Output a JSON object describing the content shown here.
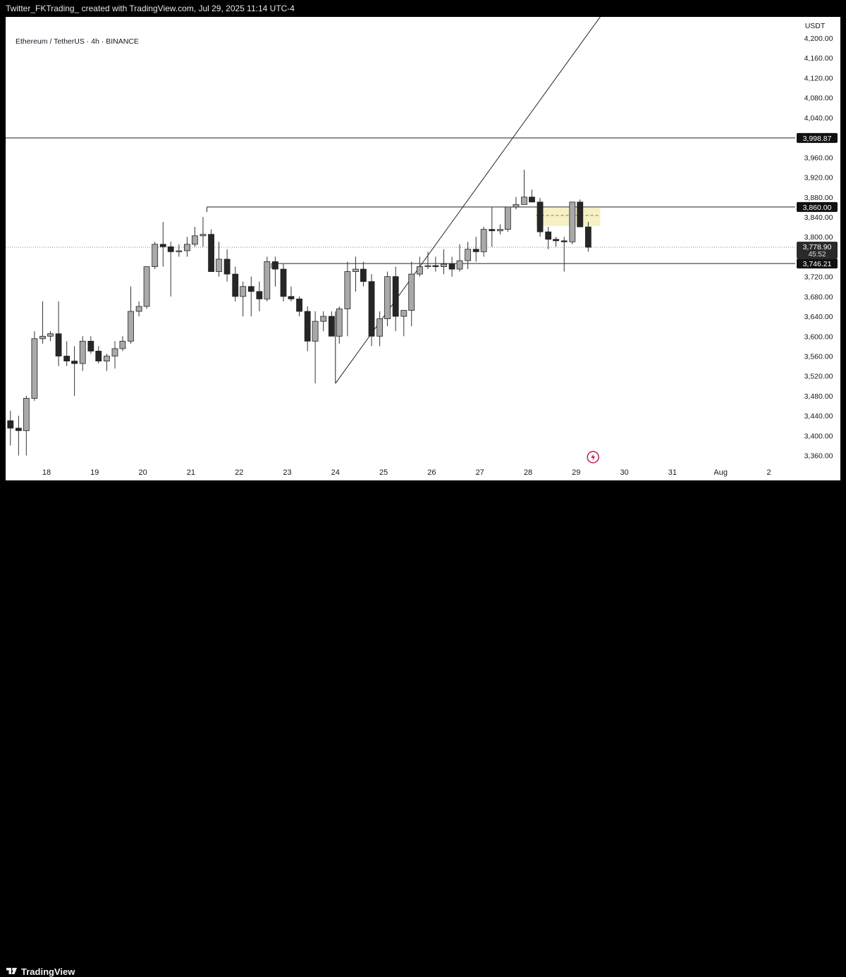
{
  "header": {
    "caption": "Twitter_FKTrading_ created with TradingView.com, Jul 29, 2025 11:14 UTC-4"
  },
  "footer": {
    "brand": "TradingView"
  },
  "chart_data": {
    "type": "candlestick",
    "symbol": "Ethereum / TetherUS · 4h · BINANCE",
    "currency": "USDT",
    "y_ticks": [
      4200,
      4160,
      4120,
      4080,
      4040,
      3960,
      3920,
      3880,
      3840,
      3800,
      3720,
      3680,
      3640,
      3600,
      3560,
      3520,
      3480,
      3440,
      3400,
      3360
    ],
    "y_tick_labels": [
      "4,200.00",
      "4,160.00",
      "4,120.00",
      "4,080.00",
      "4,040.00",
      "3,960.00",
      "3,920.00",
      "3,880.00",
      "3,840.00",
      "3,800.00",
      "3,720.00",
      "3,680.00",
      "3,640.00",
      "3,600.00",
      "3,560.00",
      "3,520.00",
      "3,480.00",
      "3,440.00",
      "3,400.00",
      "3,360.00"
    ],
    "x_labels": [
      {
        "label": "18",
        "day": 18
      },
      {
        "label": "19",
        "day": 19
      },
      {
        "label": "20",
        "day": 20
      },
      {
        "label": "21",
        "day": 21
      },
      {
        "label": "22",
        "day": 22
      },
      {
        "label": "23",
        "day": 23
      },
      {
        "label": "24",
        "day": 24
      },
      {
        "label": "25",
        "day": 25
      },
      {
        "label": "26",
        "day": 26
      },
      {
        "label": "27",
        "day": 27
      },
      {
        "label": "28",
        "day": 28
      },
      {
        "label": "29",
        "day": 29
      },
      {
        "label": "30",
        "day": 30
      },
      {
        "label": "31",
        "day": 31
      },
      {
        "label": "Aug",
        "day": 32
      },
      {
        "label": "2",
        "day": 33
      }
    ],
    "price_markers": [
      {
        "label": "3,998.87",
        "value": 3998.87,
        "style": "dark"
      },
      {
        "label": "3,860.00",
        "value": 3860,
        "style": "dark"
      },
      {
        "label": "3,778.90",
        "sub": "45:52",
        "value": 3778.9,
        "style": "current"
      },
      {
        "label": "3,746.21",
        "value": 3746.21,
        "style": "dark"
      }
    ],
    "horizontal_levels": [
      {
        "value": 3998.87,
        "from_day": 17
      },
      {
        "value": 3860,
        "from_day": 21.33
      },
      {
        "value": 3746.21,
        "from_day": 22.67
      }
    ],
    "current_price": 3778.9,
    "trendlines": [
      {
        "from": {
          "day": 24.0,
          "price": 3505
        },
        "to": {
          "day": 30.0,
          "price": 4310
        }
      },
      {
        "from": {
          "day": 24.0,
          "price": 3505
        },
        "to": {
          "day": 24.0,
          "price": 3650
        }
      }
    ],
    "zone": {
      "from_day": 28.17,
      "to_day": 29.5,
      "low": 3822,
      "high": 3858,
      "mid": 3843
    },
    "candles": [
      {
        "day": 17.08,
        "o": 3440,
        "h": 3480,
        "l": 3380,
        "c": 3430
      },
      {
        "day": 17.25,
        "o": 3430,
        "h": 3450,
        "l": 3380,
        "c": 3415
      },
      {
        "day": 17.42,
        "o": 3415,
        "h": 3440,
        "l": 3360,
        "c": 3410
      },
      {
        "day": 17.58,
        "o": 3410,
        "h": 3480,
        "l": 3360,
        "c": 3475
      },
      {
        "day": 17.75,
        "o": 3475,
        "h": 3610,
        "l": 3470,
        "c": 3595
      },
      {
        "day": 17.92,
        "o": 3595,
        "h": 3670,
        "l": 3585,
        "c": 3600
      },
      {
        "day": 18.08,
        "o": 3600,
        "h": 3610,
        "l": 3590,
        "c": 3605
      },
      {
        "day": 18.25,
        "o": 3605,
        "h": 3670,
        "l": 3540,
        "c": 3560
      },
      {
        "day": 18.42,
        "o": 3560,
        "h": 3590,
        "l": 3540,
        "c": 3550
      },
      {
        "day": 18.58,
        "o": 3550,
        "h": 3580,
        "l": 3480,
        "c": 3545
      },
      {
        "day": 18.75,
        "o": 3545,
        "h": 3600,
        "l": 3530,
        "c": 3590
      },
      {
        "day": 18.92,
        "o": 3590,
        "h": 3600,
        "l": 3565,
        "c": 3570
      },
      {
        "day": 19.08,
        "o": 3570,
        "h": 3580,
        "l": 3545,
        "c": 3550
      },
      {
        "day": 19.25,
        "o": 3550,
        "h": 3565,
        "l": 3530,
        "c": 3560
      },
      {
        "day": 19.42,
        "o": 3560,
        "h": 3590,
        "l": 3535,
        "c": 3575
      },
      {
        "day": 19.58,
        "o": 3575,
        "h": 3600,
        "l": 3570,
        "c": 3590
      },
      {
        "day": 19.75,
        "o": 3590,
        "h": 3700,
        "l": 3585,
        "c": 3650
      },
      {
        "day": 19.92,
        "o": 3650,
        "h": 3670,
        "l": 3640,
        "c": 3660
      },
      {
        "day": 20.08,
        "o": 3660,
        "h": 3740,
        "l": 3655,
        "c": 3740
      },
      {
        "day": 20.25,
        "o": 3740,
        "h": 3790,
        "l": 3735,
        "c": 3785
      },
      {
        "day": 20.42,
        "o": 3785,
        "h": 3830,
        "l": 3740,
        "c": 3780
      },
      {
        "day": 20.58,
        "o": 3780,
        "h": 3790,
        "l": 3680,
        "c": 3770
      },
      {
        "day": 20.75,
        "o": 3770,
        "h": 3785,
        "l": 3760,
        "c": 3772
      },
      {
        "day": 20.92,
        "o": 3772,
        "h": 3800,
        "l": 3760,
        "c": 3785
      },
      {
        "day": 21.08,
        "o": 3785,
        "h": 3820,
        "l": 3780,
        "c": 3802
      },
      {
        "day": 21.25,
        "o": 3802,
        "h": 3840,
        "l": 3780,
        "c": 3805
      },
      {
        "day": 21.42,
        "o": 3805,
        "h": 3815,
        "l": 3730,
        "c": 3730
      },
      {
        "day": 21.58,
        "o": 3730,
        "h": 3790,
        "l": 3720,
        "c": 3755
      },
      {
        "day": 21.75,
        "o": 3755,
        "h": 3775,
        "l": 3710,
        "c": 3725
      },
      {
        "day": 21.92,
        "o": 3725,
        "h": 3740,
        "l": 3670,
        "c": 3680
      },
      {
        "day": 22.08,
        "o": 3680,
        "h": 3710,
        "l": 3640,
        "c": 3700
      },
      {
        "day": 22.25,
        "o": 3700,
        "h": 3720,
        "l": 3640,
        "c": 3690
      },
      {
        "day": 22.42,
        "o": 3690,
        "h": 3710,
        "l": 3650,
        "c": 3675
      },
      {
        "day": 22.58,
        "o": 3675,
        "h": 3760,
        "l": 3670,
        "c": 3750
      },
      {
        "day": 22.75,
        "o": 3750,
        "h": 3760,
        "l": 3700,
        "c": 3735
      },
      {
        "day": 22.92,
        "o": 3735,
        "h": 3745,
        "l": 3670,
        "c": 3680
      },
      {
        "day": 23.08,
        "o": 3680,
        "h": 3700,
        "l": 3670,
        "c": 3675
      },
      {
        "day": 23.25,
        "o": 3675,
        "h": 3680,
        "l": 3640,
        "c": 3650
      },
      {
        "day": 23.42,
        "o": 3650,
        "h": 3660,
        "l": 3570,
        "c": 3590
      },
      {
        "day": 23.58,
        "o": 3590,
        "h": 3650,
        "l": 3505,
        "c": 3630
      },
      {
        "day": 23.75,
        "o": 3630,
        "h": 3650,
        "l": 3610,
        "c": 3640
      },
      {
        "day": 23.92,
        "o": 3640,
        "h": 3650,
        "l": 3600,
        "c": 3600
      },
      {
        "day": 24.08,
        "o": 3600,
        "h": 3660,
        "l": 3585,
        "c": 3655
      },
      {
        "day": 24.25,
        "o": 3655,
        "h": 3750,
        "l": 3600,
        "c": 3730
      },
      {
        "day": 24.42,
        "o": 3730,
        "h": 3760,
        "l": 3690,
        "c": 3735
      },
      {
        "day": 24.58,
        "o": 3735,
        "h": 3750,
        "l": 3700,
        "c": 3710
      },
      {
        "day": 24.75,
        "o": 3710,
        "h": 3725,
        "l": 3580,
        "c": 3600
      },
      {
        "day": 24.92,
        "o": 3600,
        "h": 3650,
        "l": 3580,
        "c": 3635
      },
      {
        "day": 25.08,
        "o": 3635,
        "h": 3730,
        "l": 3620,
        "c": 3720
      },
      {
        "day": 25.25,
        "o": 3720,
        "h": 3740,
        "l": 3610,
        "c": 3640
      },
      {
        "day": 25.42,
        "o": 3640,
        "h": 3650,
        "l": 3600,
        "c": 3652
      },
      {
        "day": 25.58,
        "o": 3652,
        "h": 3750,
        "l": 3620,
        "c": 3725
      },
      {
        "day": 25.75,
        "o": 3725,
        "h": 3760,
        "l": 3720,
        "c": 3740
      },
      {
        "day": 25.92,
        "o": 3740,
        "h": 3770,
        "l": 3735,
        "c": 3742
      },
      {
        "day": 26.08,
        "o": 3742,
        "h": 3760,
        "l": 3730,
        "c": 3740
      },
      {
        "day": 26.25,
        "o": 3740,
        "h": 3775,
        "l": 3725,
        "c": 3745
      },
      {
        "day": 26.42,
        "o": 3745,
        "h": 3760,
        "l": 3720,
        "c": 3735
      },
      {
        "day": 26.58,
        "o": 3735,
        "h": 3785,
        "l": 3730,
        "c": 3752
      },
      {
        "day": 26.75,
        "o": 3752,
        "h": 3790,
        "l": 3735,
        "c": 3775
      },
      {
        "day": 26.92,
        "o": 3775,
        "h": 3800,
        "l": 3750,
        "c": 3770
      },
      {
        "day": 27.08,
        "o": 3770,
        "h": 3820,
        "l": 3760,
        "c": 3815
      },
      {
        "day": 27.25,
        "o": 3815,
        "h": 3860,
        "l": 3780,
        "c": 3812
      },
      {
        "day": 27.42,
        "o": 3812,
        "h": 3825,
        "l": 3805,
        "c": 3815
      },
      {
        "day": 27.58,
        "o": 3815,
        "h": 3860,
        "l": 3810,
        "c": 3860
      },
      {
        "day": 27.75,
        "o": 3860,
        "h": 3880,
        "l": 3855,
        "c": 3865
      },
      {
        "day": 27.92,
        "o": 3865,
        "h": 3935,
        "l": 3865,
        "c": 3880
      },
      {
        "day": 28.08,
        "o": 3880,
        "h": 3895,
        "l": 3870,
        "c": 3870
      },
      {
        "day": 28.25,
        "o": 3870,
        "h": 3878,
        "l": 3800,
        "c": 3810
      },
      {
        "day": 28.42,
        "o": 3810,
        "h": 3820,
        "l": 3775,
        "c": 3795
      },
      {
        "day": 28.58,
        "o": 3795,
        "h": 3800,
        "l": 3780,
        "c": 3792
      },
      {
        "day": 28.75,
        "o": 3792,
        "h": 3800,
        "l": 3730,
        "c": 3790
      },
      {
        "day": 28.92,
        "o": 3790,
        "h": 3870,
        "l": 3785,
        "c": 3870
      },
      {
        "day": 29.08,
        "o": 3870,
        "h": 3875,
        "l": 3820,
        "c": 3820
      },
      {
        "day": 29.25,
        "o": 3820,
        "h": 3830,
        "l": 3770,
        "c": 3779
      }
    ],
    "colors": {
      "up": "#a9a9a9",
      "down": "#262626",
      "wick": "#333333",
      "zone": "#f6f0c2"
    }
  }
}
